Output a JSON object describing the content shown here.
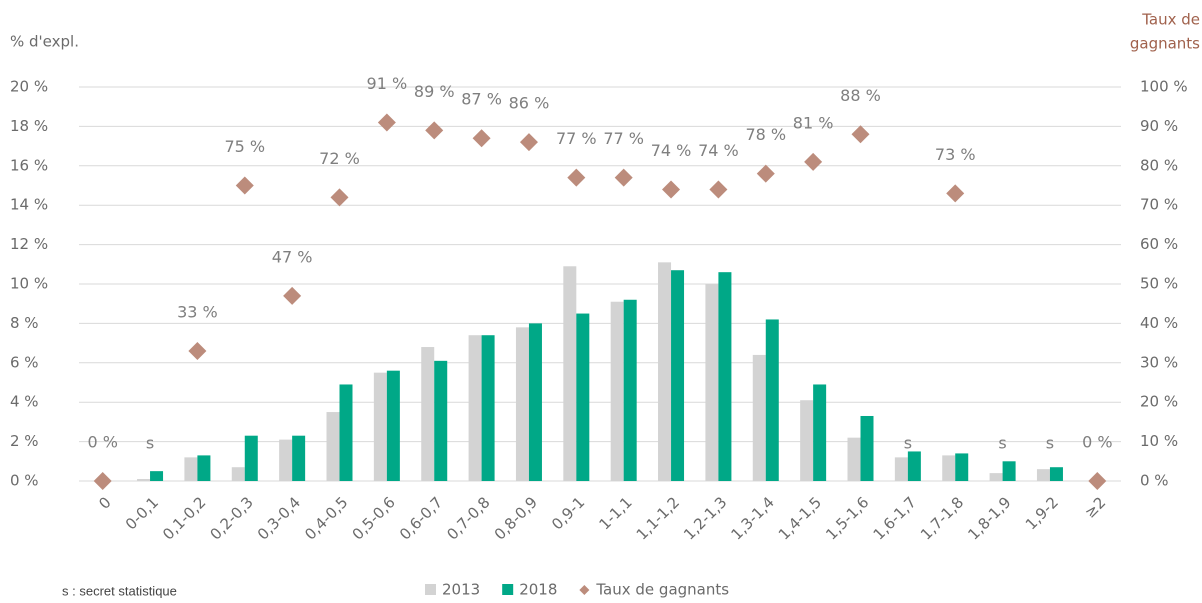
{
  "chart_data": {
    "type": "bar",
    "y_label": "% d'expl.",
    "y2_label": [
      "Taux de",
      "gagnants"
    ],
    "note": "s : secret statistique",
    "categories": [
      "0",
      "0-0,1",
      "0,1-0,2",
      "0,2-0,3",
      "0,3-0,4",
      "0,4-0,5",
      "0,5-0,6",
      "0,6-0,7",
      "0,7-0,8",
      "0,8-0,9",
      "0,9-1",
      "1-1,1",
      "1,1-1,2",
      "1,2-1,3",
      "1,3-1,4",
      "1,4-1,5",
      "1,5-1,6",
      "1,6-1,7",
      "1,7-1,8",
      "1,8-1,9",
      "1,9-2",
      "≥2"
    ],
    "series": [
      {
        "name": "2013",
        "type": "bar",
        "color": "#d3d3d3",
        "values": [
          0,
          0.1,
          1.2,
          0.7,
          2.1,
          3.5,
          5.5,
          6.8,
          7.4,
          7.8,
          10.9,
          9.1,
          11.1,
          10.0,
          6.4,
          4.1,
          2.2,
          1.2,
          1.3,
          0.4,
          0.6,
          0
        ]
      },
      {
        "name": "2018",
        "type": "bar",
        "color": "#00a887",
        "values": [
          0,
          0.5,
          1.3,
          2.3,
          2.3,
          4.9,
          5.6,
          6.1,
          7.4,
          8.0,
          8.5,
          9.2,
          10.7,
          10.6,
          8.2,
          4.9,
          3.3,
          1.5,
          1.4,
          1.0,
          0.7,
          0
        ]
      },
      {
        "name": "Taux de gagnants",
        "type": "scatter",
        "axis": "y2",
        "color": "#bc8c7c",
        "values": [
          0,
          null,
          33,
          75,
          47,
          72,
          91,
          89,
          87,
          86,
          77,
          77,
          74,
          74,
          78,
          81,
          88,
          null,
          73,
          null,
          null,
          0
        ],
        "value_labels": [
          "0 %",
          "s",
          "33 %",
          "75 %",
          "47 %",
          "72 %",
          "91 %",
          "89 %",
          "87 %",
          "86 %",
          "77 %",
          "77 %",
          "74 %",
          "74 %",
          "78 %",
          "81 %",
          "88 %",
          "s",
          "73 %",
          "s",
          "s",
          "0 %"
        ]
      }
    ],
    "ylim": [
      0,
      20
    ],
    "yticks": [
      {
        "value": 0,
        "label": "0 %"
      },
      {
        "value": 2,
        "label": "2 %"
      },
      {
        "value": 4,
        "label": "4 %"
      },
      {
        "value": 6,
        "label": "6 %"
      },
      {
        "value": 8,
        "label": "8 %"
      },
      {
        "value": 10,
        "label": "10 %"
      },
      {
        "value": 12,
        "label": "12 %"
      },
      {
        "value": 14,
        "label": "14 %"
      },
      {
        "value": 16,
        "label": "16 %"
      },
      {
        "value": 18,
        "label": "18 %"
      },
      {
        "value": 20,
        "label": "20 %"
      }
    ],
    "y2lim": [
      0,
      100
    ],
    "y2ticks": [
      {
        "value": 0,
        "label": "0 %"
      },
      {
        "value": 10,
        "label": "10 %"
      },
      {
        "value": 20,
        "label": "20 %"
      },
      {
        "value": 30,
        "label": "30 %"
      },
      {
        "value": 40,
        "label": "40 %"
      },
      {
        "value": 50,
        "label": "50 %"
      },
      {
        "value": 60,
        "label": "60 %"
      },
      {
        "value": 70,
        "label": "70 %"
      },
      {
        "value": 80,
        "label": "80 %"
      },
      {
        "value": 90,
        "label": "90 %"
      },
      {
        "value": 100,
        "label": "100 %"
      }
    ],
    "grid": true,
    "legend": "bottom"
  }
}
